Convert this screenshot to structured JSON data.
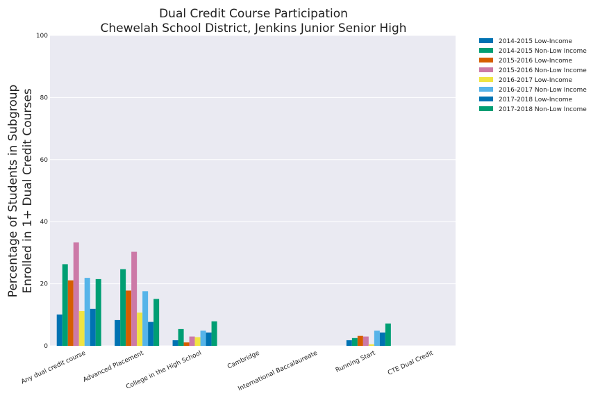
{
  "chart_data": {
    "type": "bar",
    "title_lines": [
      "Dual Credit Course Participation",
      "Chewelah School District, Jenkins Junior Senior High"
    ],
    "xlabel": "",
    "ylabel_lines": [
      "Percentage of Students in Subgroup",
      "Enrolled in 1+ Dual Credit Courses"
    ],
    "ylim": [
      0,
      100
    ],
    "yticks": [
      0,
      20,
      40,
      60,
      80,
      100
    ],
    "grid": true,
    "legend_position": "outside-top-right",
    "categories": [
      "Any dual credit course",
      "Advanced Placement",
      "College in the High School",
      "Cambridge",
      "International Baccalaureate",
      "Running Start",
      "CTE Dual Credit"
    ],
    "series": [
      {
        "name": "2014-2015 Low-Income",
        "color": "#0072B2",
        "values": [
          10.1,
          8.3,
          1.8,
          0,
          0,
          1.8,
          0
        ]
      },
      {
        "name": "2014-2015 Non-Low Income",
        "color": "#009E73",
        "values": [
          26.3,
          24.7,
          5.4,
          0,
          0,
          2.5,
          0
        ]
      },
      {
        "name": "2015-2016 Low-Income",
        "color": "#D55E00",
        "values": [
          21.1,
          17.8,
          1.1,
          0,
          0,
          3.2,
          0
        ]
      },
      {
        "name": "2015-2016 Non-Low Income",
        "color": "#CC79A7",
        "values": [
          33.3,
          30.3,
          3.0,
          0,
          0,
          3.0,
          0
        ]
      },
      {
        "name": "2016-2017 Low-Income",
        "color": "#F0E442",
        "values": [
          11.2,
          10.7,
          2.8,
          0,
          0,
          0.5,
          0
        ]
      },
      {
        "name": "2016-2017 Non-Low Income",
        "color": "#56B4E9",
        "values": [
          21.9,
          17.6,
          4.9,
          0,
          0,
          4.9,
          0
        ]
      },
      {
        "name": "2017-2018 Low-Income",
        "color": "#0072B2",
        "values": [
          11.9,
          7.7,
          4.3,
          0,
          0,
          4.3,
          0
        ]
      },
      {
        "name": "2017-2018 Non-Low Income",
        "color": "#009E73",
        "values": [
          21.5,
          15.1,
          7.9,
          0,
          0,
          7.2,
          0
        ]
      }
    ]
  }
}
